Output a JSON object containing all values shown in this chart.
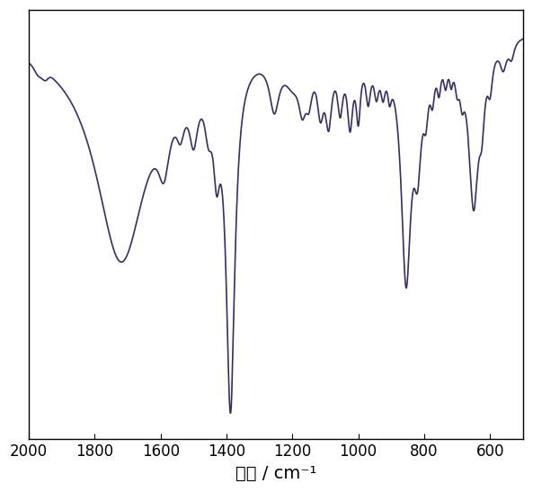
{
  "xlabel": "波数 / cm⁻¹",
  "xlabel_fontsize": 14,
  "xlim": [
    2000,
    500
  ],
  "ylim": [
    -0.02,
    1.0
  ],
  "x_ticks": [
    2000,
    1800,
    1600,
    1400,
    1200,
    1000,
    800,
    600
  ],
  "line_color": "#3a2d5f",
  "line_width": 1.2,
  "background_color": "#ffffff",
  "figsize": [
    5.93,
    5.47
  ],
  "dpi": 100
}
